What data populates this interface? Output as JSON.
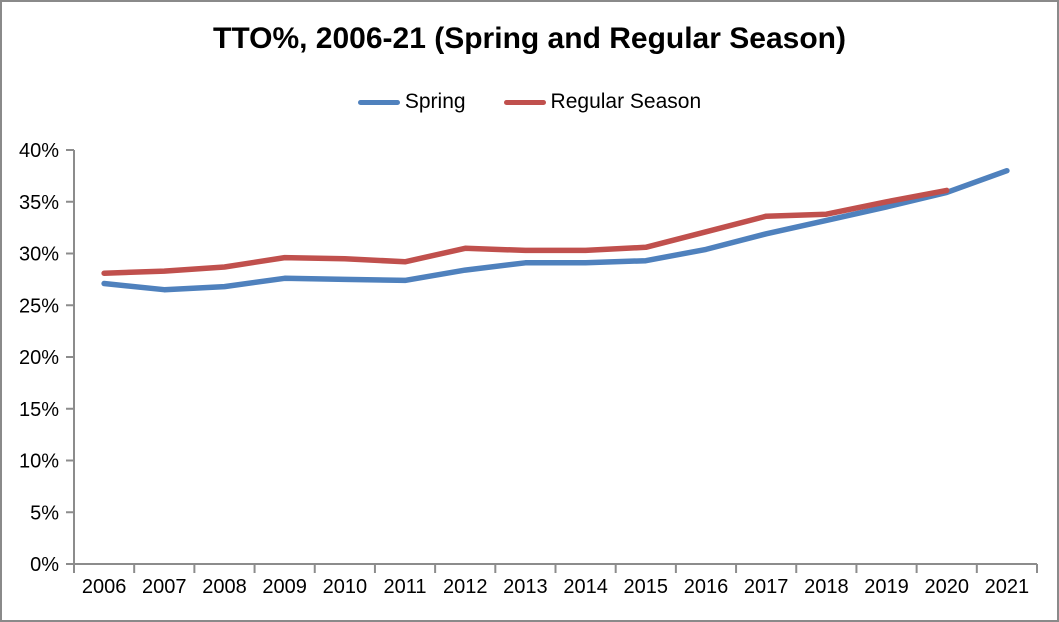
{
  "chart_data": {
    "type": "line",
    "title": "TTO%, 2006-21 (Spring and Regular Season)",
    "categories": [
      "2006",
      "2007",
      "2008",
      "2009",
      "2010",
      "2011",
      "2012",
      "2013",
      "2014",
      "2015",
      "2016",
      "2017",
      "2018",
      "2019",
      "2020",
      "2021"
    ],
    "series": [
      {
        "name": "Spring",
        "color": "#4F81BD",
        "values": [
          27.1,
          26.5,
          26.8,
          27.6,
          27.5,
          27.4,
          28.4,
          29.1,
          29.1,
          29.3,
          30.4,
          31.9,
          33.2,
          34.5,
          35.9,
          38.0
        ]
      },
      {
        "name": "Regular Season",
        "color": "#C0504D",
        "values": [
          28.1,
          28.3,
          28.7,
          29.6,
          29.5,
          29.2,
          30.5,
          30.3,
          30.3,
          30.6,
          32.1,
          33.6,
          33.8,
          35.0,
          36.1,
          null
        ]
      }
    ],
    "xlabel": "",
    "ylabel": "",
    "ylim": [
      0,
      40
    ],
    "ytick_step": 5,
    "ytick_suffix": "%",
    "grid": false,
    "legend_position": "top",
    "colors": {
      "axis": "#8C8C8C",
      "tick_text": "#000000",
      "title_text": "#000000",
      "background": "#FFFFFF",
      "frame_border": "#8A8A8A"
    }
  }
}
